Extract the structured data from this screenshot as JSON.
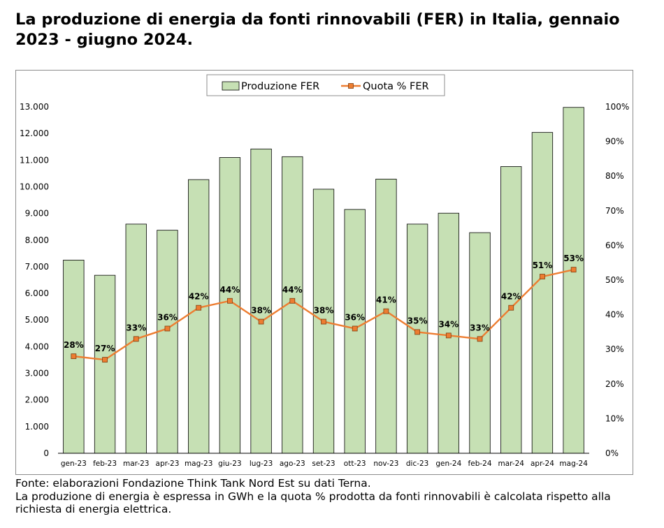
{
  "title": "La produzione di energia da fonti rinnovabili (FER) in Italia, gennaio 2023 - giugno 2024.",
  "footer": {
    "source": "Fonte: elaborazioni Fondazione Think Tank Nord Est su dati Terna.",
    "note": "La produzione di energia è espressa in GWh e la quota % prodotta da fonti rinnovabili è calcolata rispetto alla richiesta di energia elettrica."
  },
  "chart_data": {
    "type": "bar",
    "categories": [
      "gen-23",
      "feb-23",
      "mar-23",
      "apr-23",
      "mag-23",
      "giu-23",
      "lug-23",
      "ago-23",
      "set-23",
      "ott-23",
      "nov-23",
      "dic-23",
      "gen-24",
      "feb-24",
      "mar-24",
      "apr-24",
      "mag-24"
    ],
    "series": [
      {
        "name": "Produzione FER",
        "type": "bar",
        "axis": "left",
        "color": "#c6e0b4",
        "values": [
          7250,
          6680,
          8600,
          8370,
          10270,
          11100,
          11420,
          11130,
          9910,
          9150,
          10290,
          8600,
          9010,
          8280,
          10760,
          12040,
          12980
        ]
      },
      {
        "name": "Quota % FER",
        "type": "line",
        "axis": "right",
        "color": "#ed7d31",
        "values": [
          28,
          27,
          33,
          36,
          42,
          44,
          38,
          44,
          38,
          36,
          41,
          35,
          34,
          33,
          42,
          51,
          53
        ],
        "data_labels": [
          "28%",
          "27%",
          "33%",
          "36%",
          "42%",
          "44%",
          "38%",
          "44%",
          "38%",
          "36%",
          "41%",
          "35%",
          "34%",
          "33%",
          "42%",
          "51%",
          "53%"
        ]
      }
    ],
    "y_left": {
      "min": 0,
      "max": 13000,
      "ticks": [
        0,
        1000,
        2000,
        3000,
        4000,
        5000,
        6000,
        7000,
        8000,
        9000,
        10000,
        11000,
        12000,
        13000
      ],
      "tick_labels": [
        "0",
        "1.000",
        "2.000",
        "3.000",
        "4.000",
        "5.000",
        "6.000",
        "7.000",
        "8.000",
        "9.000",
        "10.000",
        "11.000",
        "12.000",
        "13.000"
      ]
    },
    "y_right": {
      "min": 0,
      "max": 100,
      "ticks": [
        0,
        10,
        20,
        30,
        40,
        50,
        60,
        70,
        80,
        90,
        100
      ],
      "tick_labels": [
        "0%",
        "10%",
        "20%",
        "30%",
        "40%",
        "50%",
        "60%",
        "70%",
        "80%",
        "90%",
        "100%"
      ]
    },
    "legend": {
      "placement": "top-center",
      "entries": [
        "Produzione FER",
        "Quota % FER"
      ]
    },
    "grid": false
  }
}
